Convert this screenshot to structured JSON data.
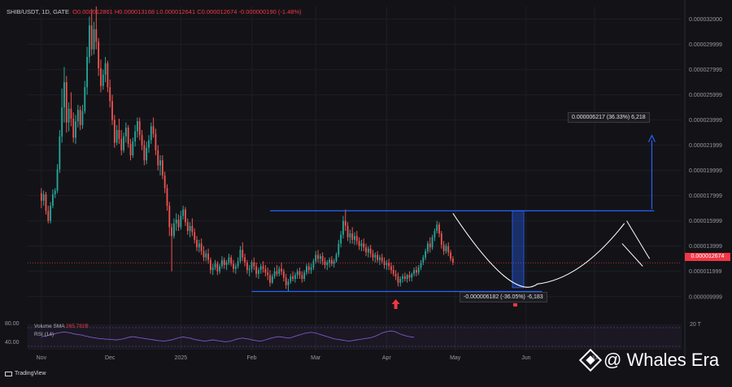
{
  "header": {
    "symbol": "SHIB/USDT, 1D, GATE",
    "ohlc": "O0.000012861 H0.000013168 L0.000012641 C0.000012674 -0.000000190 (-1.48%)"
  },
  "colors": {
    "background": "#131317",
    "up": "#26a69a",
    "down": "#ef5350",
    "box": "#2962ff",
    "curve": "#ffffff",
    "rsi": "#7e57c2"
  },
  "chart_data": {
    "type": "candlestick",
    "title": "",
    "y_ticks": [
      "0.000032000",
      "0.000029999",
      "0.000027999",
      "0.000025999",
      "0.000023999",
      "0.000021999",
      "0.000019999",
      "0.000017999",
      "0.000015999",
      "0.000013999",
      "0.000011999",
      "0.000009999"
    ],
    "ylim": [
      8.5e-06,
      3.3e-05
    ],
    "x_ticks": [
      "Nov",
      "Dec",
      "2025",
      "Feb",
      "Mar",
      "Apr",
      "May",
      "Jun",
      "Jul"
    ],
    "x_tick_days": [
      0,
      30,
      61,
      92,
      120,
      151,
      181,
      212,
      242
    ],
    "day_range": [
      -6,
      280
    ],
    "last_price_label": "0.000012674",
    "last_price": 1.2674e-05,
    "candles": [
      [
        1.82e-05,
        1.86e-05,
        1.7e-05,
        1.76e-05
      ],
      [
        1.76e-05,
        1.84e-05,
        1.72e-05,
        1.81e-05
      ],
      [
        1.81e-05,
        1.83e-05,
        1.65e-05,
        1.68e-05
      ],
      [
        1.68e-05,
        1.72e-05,
        1.58e-05,
        1.6e-05
      ],
      [
        1.6e-05,
        1.75e-05,
        1.58e-05,
        1.72e-05
      ],
      [
        1.72e-05,
        1.85e-05,
        1.7e-05,
        1.81e-05
      ],
      [
        1.81e-05,
        1.86e-05,
        1.78e-05,
        1.84e-05
      ],
      [
        1.84e-05,
        2.05e-05,
        1.82e-05,
        2.01e-05
      ],
      [
        2.01e-05,
        2.32e-05,
        1.98e-05,
        2.27e-05
      ],
      [
        2.27e-05,
        2.65e-05,
        2.22e-05,
        2.5e-05
      ],
      [
        2.5e-05,
        2.82e-05,
        2.38e-05,
        2.7e-05
      ],
      [
        2.7e-05,
        2.75e-05,
        2.3e-05,
        2.38e-05
      ],
      [
        2.38e-05,
        2.54e-05,
        2.31e-05,
        2.49e-05
      ],
      [
        2.49e-05,
        2.62e-05,
        2.35e-05,
        2.41e-05
      ],
      [
        2.41e-05,
        2.46e-05,
        2.22e-05,
        2.26e-05
      ],
      [
        2.26e-05,
        2.44e-05,
        2.21e-05,
        2.39e-05
      ],
      [
        2.39e-05,
        2.52e-05,
        2.34e-05,
        2.48e-05
      ],
      [
        2.48e-05,
        2.51e-05,
        2.32e-05,
        2.36e-05
      ],
      [
        2.36e-05,
        2.52e-05,
        2.33e-05,
        2.47e-05
      ],
      [
        2.47e-05,
        2.71e-05,
        2.45e-05,
        2.66e-05
      ],
      [
        2.66e-05,
        2.98e-05,
        2.6e-05,
        2.9e-05
      ],
      [
        2.9e-05,
        3.22e-05,
        2.85e-05,
        3.15e-05
      ],
      [
        3.15e-05,
        3.28e-05,
        2.91e-05,
        2.96e-05
      ],
      [
        2.96e-05,
        3.18e-05,
        2.92e-05,
        3.12e-05
      ],
      [
        3.12e-05,
        3.3e-05,
        2.96e-05,
        3.02e-05
      ],
      [
        3.02e-05,
        3.05e-05,
        2.75e-05,
        2.81e-05
      ],
      [
        2.81e-05,
        2.88e-05,
        2.62e-05,
        2.67e-05
      ],
      [
        2.67e-05,
        2.8e-05,
        2.64e-05,
        2.76e-05
      ],
      [
        2.76e-05,
        2.9e-05,
        2.7e-05,
        2.85e-05
      ],
      [
        2.85e-05,
        2.87e-05,
        2.62e-05,
        2.66e-05
      ],
      [
        2.66e-05,
        2.72e-05,
        2.5e-05,
        2.55e-05
      ],
      [
        2.55e-05,
        2.6e-05,
        2.36e-05,
        2.4e-05
      ],
      [
        2.4e-05,
        2.44e-05,
        2.18e-05,
        2.22e-05
      ],
      [
        2.22e-05,
        2.36e-05,
        2.2e-05,
        2.32e-05
      ],
      [
        2.32e-05,
        2.41e-05,
        2.21e-05,
        2.25e-05
      ],
      [
        2.25e-05,
        2.32e-05,
        2.12e-05,
        2.16e-05
      ],
      [
        2.16e-05,
        2.3e-05,
        2.14e-05,
        2.27e-05
      ],
      [
        2.27e-05,
        2.38e-05,
        2.22e-05,
        2.34e-05
      ],
      [
        2.34e-05,
        2.36e-05,
        2.18e-05,
        2.21e-05
      ],
      [
        2.21e-05,
        2.25e-05,
        2.08e-05,
        2.12e-05
      ],
      [
        2.12e-05,
        2.26e-05,
        2.1e-05,
        2.23e-05
      ],
      [
        2.23e-05,
        2.36e-05,
        2.19e-05,
        2.31e-05
      ],
      [
        2.31e-05,
        2.42e-05,
        2.26e-05,
        2.39e-05
      ],
      [
        2.39e-05,
        2.42e-05,
        2.24e-05,
        2.28e-05
      ],
      [
        2.28e-05,
        2.32e-05,
        2.16e-05,
        2.2e-05
      ],
      [
        2.2e-05,
        2.24e-05,
        2.04e-05,
        2.08e-05
      ],
      [
        2.08e-05,
        2.23e-05,
        2.05e-05,
        2.18e-05
      ],
      [
        2.18e-05,
        2.28e-05,
        2.14e-05,
        2.24e-05
      ],
      [
        2.24e-05,
        2.38e-05,
        2.21e-05,
        2.35e-05
      ],
      [
        2.35e-05,
        2.42e-05,
        2.26e-05,
        2.29e-05
      ],
      [
        2.29e-05,
        2.33e-05,
        2.12e-05,
        2.16e-05
      ],
      [
        2.16e-05,
        2.2e-05,
        2e-05,
        2.04e-05
      ],
      [
        2.04e-05,
        2.12e-05,
        1.96e-05,
        2.08e-05
      ],
      [
        2.08e-05,
        2.12e-05,
        1.93e-05,
        1.96e-05
      ],
      [
        1.96e-05,
        1.99e-05,
        1.82e-05,
        1.86e-05
      ],
      [
        1.86e-05,
        1.89e-05,
        1.68e-05,
        1.72e-05
      ],
      [
        1.72e-05,
        1.75e-05,
        1.48e-05,
        1.55e-05
      ],
      [
        1.55e-05,
        1.58e-05,
        1.2e-05,
        1.48e-05
      ],
      [
        1.48e-05,
        1.62e-05,
        1.46e-05,
        1.58e-05
      ],
      [
        1.58e-05,
        1.66e-05,
        1.52e-05,
        1.61e-05
      ],
      [
        1.61e-05,
        1.65e-05,
        1.52e-05,
        1.55e-05
      ],
      [
        1.55e-05,
        1.68e-05,
        1.53e-05,
        1.64e-05
      ],
      [
        1.64e-05,
        1.72e-05,
        1.61e-05,
        1.69e-05
      ],
      [
        1.69e-05,
        1.71e-05,
        1.56e-05,
        1.59e-05
      ],
      [
        1.59e-05,
        1.62e-05,
        1.49e-05,
        1.52e-05
      ],
      [
        1.52e-05,
        1.59e-05,
        1.47e-05,
        1.56e-05
      ],
      [
        1.56e-05,
        1.62e-05,
        1.48e-05,
        1.51e-05
      ],
      [
        1.51e-05,
        1.54e-05,
        1.42e-05,
        1.45e-05
      ],
      [
        1.45e-05,
        1.48e-05,
        1.36e-05,
        1.39e-05
      ],
      [
        1.39e-05,
        1.45e-05,
        1.35e-05,
        1.42e-05
      ],
      [
        1.42e-05,
        1.46e-05,
        1.33e-05,
        1.36e-05
      ],
      [
        1.36e-05,
        1.4e-05,
        1.28e-05,
        1.31e-05
      ],
      [
        1.31e-05,
        1.37e-05,
        1.28e-05,
        1.34e-05
      ],
      [
        1.34e-05,
        1.38e-05,
        1.26e-05,
        1.29e-05
      ],
      [
        1.29e-05,
        1.31e-05,
        1.18e-05,
        1.21e-05
      ],
      [
        1.21e-05,
        1.26e-05,
        1.17e-05,
        1.23e-05
      ],
      [
        1.23e-05,
        1.29e-05,
        1.21e-05,
        1.26e-05
      ],
      [
        1.26e-05,
        1.28e-05,
        1.17e-05,
        1.2e-05
      ],
      [
        1.2e-05,
        1.26e-05,
        1.18e-05,
        1.24e-05
      ],
      [
        1.24e-05,
        1.32e-05,
        1.22e-05,
        1.29e-05
      ],
      [
        1.29e-05,
        1.31e-05,
        1.22e-05,
        1.25e-05
      ],
      [
        1.25e-05,
        1.29e-05,
        1.21e-05,
        1.27e-05
      ],
      [
        1.27e-05,
        1.34e-05,
        1.25e-05,
        1.31e-05
      ],
      [
        1.31e-05,
        1.33e-05,
        1.24e-05,
        1.26e-05
      ],
      [
        1.26e-05,
        1.29e-05,
        1.19e-05,
        1.22e-05
      ],
      [
        1.22e-05,
        1.26e-05,
        1.18e-05,
        1.24e-05
      ],
      [
        1.24e-05,
        1.31e-05,
        1.22e-05,
        1.28e-05
      ],
      [
        1.28e-05,
        1.4e-05,
        1.26e-05,
        1.37e-05
      ],
      [
        1.37e-05,
        1.43e-05,
        1.28e-05,
        1.31e-05
      ],
      [
        1.31e-05,
        1.34e-05,
        1.24e-05,
        1.27e-05
      ],
      [
        1.27e-05,
        1.29e-05,
        1.18e-05,
        1.21e-05
      ],
      [
        1.21e-05,
        1.25e-05,
        1.16e-05,
        1.22e-05
      ],
      [
        1.22e-05,
        1.29e-05,
        1.19e-05,
        1.27e-05
      ],
      [
        1.27e-05,
        1.31e-05,
        1.21e-05,
        1.24e-05
      ],
      [
        1.24e-05,
        1.27e-05,
        1.15e-05,
        1.18e-05
      ],
      [
        1.18e-05,
        1.23e-05,
        1.14e-05,
        1.21e-05
      ],
      [
        1.21e-05,
        1.26e-05,
        1.18e-05,
        1.24e-05
      ],
      [
        1.24e-05,
        1.28e-05,
        1.19e-05,
        1.22e-05
      ],
      [
        1.22e-05,
        1.25e-05,
        1.16e-05,
        1.19e-05
      ],
      [
        1.19e-05,
        1.23e-05,
        1.13e-05,
        1.17e-05
      ],
      [
        1.17e-05,
        1.21e-05,
        1.08e-05,
        1.11e-05
      ],
      [
        1.11e-05,
        1.18e-05,
        1.1e-05,
        1.16e-05
      ],
      [
        1.16e-05,
        1.23e-05,
        1.14e-05,
        1.2e-05
      ],
      [
        1.2e-05,
        1.25e-05,
        1.16e-05,
        1.18e-05
      ],
      [
        1.18e-05,
        1.24e-05,
        1.16e-05,
        1.22e-05
      ],
      [
        1.22e-05,
        1.27e-05,
        1.17e-05,
        1.2e-05
      ],
      [
        1.2e-05,
        1.22e-05,
        1.12e-05,
        1.15e-05
      ],
      [
        1.15e-05,
        1.18e-05,
        1.06e-05,
        1.09e-05
      ],
      [
        1.09e-05,
        1.14e-05,
        1.04e-05,
        1.12e-05
      ],
      [
        1.12e-05,
        1.18e-05,
        1.1e-05,
        1.16e-05
      ],
      [
        1.16e-05,
        1.2e-05,
        1.12e-05,
        1.14e-05
      ],
      [
        1.14e-05,
        1.19e-05,
        1.11e-05,
        1.17e-05
      ],
      [
        1.17e-05,
        1.22e-05,
        1.14e-05,
        1.2e-05
      ],
      [
        1.2e-05,
        1.23e-05,
        1.14e-05,
        1.17e-05
      ],
      [
        1.17e-05,
        1.2e-05,
        1.11e-05,
        1.14e-05
      ],
      [
        1.14e-05,
        1.21e-05,
        1.12e-05,
        1.19e-05
      ],
      [
        1.19e-05,
        1.26e-05,
        1.17e-05,
        1.24e-05
      ],
      [
        1.24e-05,
        1.27e-05,
        1.18e-05,
        1.21e-05
      ],
      [
        1.21e-05,
        1.26e-05,
        1.18e-05,
        1.23e-05
      ],
      [
        1.23e-05,
        1.3e-05,
        1.21e-05,
        1.28e-05
      ],
      [
        1.28e-05,
        1.36e-05,
        1.26e-05,
        1.33e-05
      ],
      [
        1.33e-05,
        1.37e-05,
        1.27e-05,
        1.3e-05
      ],
      [
        1.3e-05,
        1.34e-05,
        1.26e-05,
        1.32e-05
      ],
      [
        1.32e-05,
        1.35e-05,
        1.25e-05,
        1.28e-05
      ],
      [
        1.28e-05,
        1.31e-05,
        1.22e-05,
        1.25e-05
      ],
      [
        1.25e-05,
        1.29e-05,
        1.21e-05,
        1.27e-05
      ],
      [
        1.27e-05,
        1.31e-05,
        1.23e-05,
        1.29e-05
      ],
      [
        1.29e-05,
        1.32e-05,
        1.24e-05,
        1.26e-05
      ],
      [
        1.26e-05,
        1.3e-05,
        1.23e-05,
        1.28e-05
      ],
      [
        1.28e-05,
        1.35e-05,
        1.27e-05,
        1.33e-05
      ],
      [
        1.33e-05,
        1.45e-05,
        1.31e-05,
        1.42e-05
      ],
      [
        1.42e-05,
        1.52e-05,
        1.39e-05,
        1.49e-05
      ],
      [
        1.49e-05,
        1.64e-05,
        1.46e-05,
        1.6e-05
      ],
      [
        1.6e-05,
        1.69e-05,
        1.52e-05,
        1.56e-05
      ],
      [
        1.56e-05,
        1.59e-05,
        1.44e-05,
        1.47e-05
      ],
      [
        1.47e-05,
        1.53e-05,
        1.42e-05,
        1.5e-05
      ],
      [
        1.5e-05,
        1.55e-05,
        1.42e-05,
        1.45e-05
      ],
      [
        1.45e-05,
        1.51e-05,
        1.41e-05,
        1.48e-05
      ],
      [
        1.48e-05,
        1.52e-05,
        1.41e-05,
        1.44e-05
      ],
      [
        1.44e-05,
        1.47e-05,
        1.37e-05,
        1.4e-05
      ],
      [
        1.4e-05,
        1.45e-05,
        1.36e-05,
        1.42e-05
      ],
      [
        1.42e-05,
        1.46e-05,
        1.36e-05,
        1.39e-05
      ],
      [
        1.39e-05,
        1.42e-05,
        1.32e-05,
        1.35e-05
      ],
      [
        1.35e-05,
        1.4e-05,
        1.31e-05,
        1.38e-05
      ],
      [
        1.38e-05,
        1.41e-05,
        1.31e-05,
        1.34e-05
      ],
      [
        1.34e-05,
        1.37e-05,
        1.28e-05,
        1.31e-05
      ],
      [
        1.31e-05,
        1.35e-05,
        1.27e-05,
        1.33e-05
      ],
      [
        1.33e-05,
        1.36e-05,
        1.27e-05,
        1.29e-05
      ],
      [
        1.29e-05,
        1.33e-05,
        1.25e-05,
        1.31e-05
      ],
      [
        1.31e-05,
        1.34e-05,
        1.26e-05,
        1.28e-05
      ],
      [
        1.28e-05,
        1.31e-05,
        1.22e-05,
        1.25e-05
      ],
      [
        1.25e-05,
        1.29e-05,
        1.21e-05,
        1.27e-05
      ],
      [
        1.27e-05,
        1.3e-05,
        1.21e-05,
        1.24e-05
      ],
      [
        1.24e-05,
        1.27e-05,
        1.18e-05,
        1.21e-05
      ],
      [
        1.21e-05,
        1.25e-05,
        1.16e-05,
        1.18e-05
      ],
      [
        1.18e-05,
        1.21e-05,
        1.13e-05,
        1.16e-05
      ],
      [
        1.16e-05,
        1.19e-05,
        1.08e-05,
        1.11e-05
      ],
      [
        1.11e-05,
        1.16e-05,
        1.08e-05,
        1.14e-05
      ],
      [
        1.14e-05,
        1.18e-05,
        1.11e-05,
        1.16e-05
      ],
      [
        1.16e-05,
        1.19e-05,
        1.12e-05,
        1.14e-05
      ],
      [
        1.14e-05,
        1.18e-05,
        1.11e-05,
        1.17e-05
      ],
      [
        1.17e-05,
        1.2e-05,
        1.12e-05,
        1.15e-05
      ],
      [
        1.15e-05,
        1.19e-05,
        1.12e-05,
        1.18e-05
      ],
      [
        1.18e-05,
        1.23e-05,
        1.16e-05,
        1.21e-05
      ],
      [
        1.21e-05,
        1.24e-05,
        1.16e-05,
        1.19e-05
      ],
      [
        1.19e-05,
        1.25e-05,
        1.17e-05,
        1.23e-05
      ],
      [
        1.23e-05,
        1.29e-05,
        1.21e-05,
        1.27e-05
      ],
      [
        1.27e-05,
        1.33e-05,
        1.25e-05,
        1.31e-05
      ],
      [
        1.31e-05,
        1.38e-05,
        1.29e-05,
        1.36e-05
      ],
      [
        1.36e-05,
        1.44e-05,
        1.34e-05,
        1.42e-05
      ],
      [
        1.42e-05,
        1.47e-05,
        1.35e-05,
        1.39e-05
      ],
      [
        1.39e-05,
        1.49e-05,
        1.37e-05,
        1.47e-05
      ],
      [
        1.47e-05,
        1.54e-05,
        1.44e-05,
        1.52e-05
      ],
      [
        1.52e-05,
        1.6e-05,
        1.5e-05,
        1.57e-05
      ],
      [
        1.57e-05,
        1.59e-05,
        1.47e-05,
        1.5e-05
      ],
      [
        1.5e-05,
        1.52e-05,
        1.38e-05,
        1.41e-05
      ],
      [
        1.41e-05,
        1.44e-05,
        1.33e-05,
        1.36e-05
      ],
      [
        1.36e-05,
        1.42e-05,
        1.34e-05,
        1.4e-05
      ],
      [
        1.4e-05,
        1.43e-05,
        1.32e-05,
        1.35e-05
      ],
      [
        1.35e-05,
        1.37e-05,
        1.28e-05,
        1.3e-05
      ],
      [
        1.3e-05,
        1.32e-05,
        1.25e-05,
        1.27e-05
      ]
    ],
    "annotations": {
      "range_top": 1.68e-05,
      "range_bottom": 1.04e-05,
      "range_day_start": 92,
      "range_day_end": 268,
      "target_price": 2.29e-05,
      "target_day": 267,
      "target_label": "0.000006217 (36.33%) 6,218",
      "drop_label": "-0.000006182 (-36.05%) -6,183",
      "drop_day_start": 206,
      "drop_day_end": 211,
      "arrow_day": 155
    },
    "volume_legend_label": "Volume SMA",
    "volume_legend_value": "265.782B",
    "rsi_label": "RSI (14)",
    "rsi_scale": [
      "80.00",
      "40.00"
    ],
    "rsi_values": [
      55,
      57,
      58,
      59,
      61,
      63,
      64,
      66,
      67,
      68,
      69,
      68,
      67,
      66,
      64,
      63,
      62,
      61,
      60,
      58,
      57,
      55,
      54,
      53,
      52,
      51,
      50,
      50,
      49,
      49,
      48,
      48,
      47,
      47,
      48,
      49,
      50,
      52,
      54,
      55,
      56,
      55,
      54,
      53,
      52,
      51,
      50,
      49,
      48,
      47,
      46,
      45,
      45,
      44,
      44,
      45,
      46,
      47,
      49,
      51,
      53,
      54,
      55,
      54,
      53,
      52,
      50,
      48,
      47,
      46,
      45,
      44,
      44,
      45,
      46,
      47,
      46,
      45,
      44,
      43,
      42,
      42,
      43,
      44,
      46,
      48,
      50,
      51,
      52,
      51,
      50,
      49,
      47,
      46,
      45,
      44,
      44,
      45,
      47,
      49,
      51,
      53,
      54,
      55,
      56,
      55,
      54,
      53,
      52,
      53,
      55,
      57,
      59,
      61,
      63,
      65,
      66,
      67,
      68,
      67,
      66,
      64,
      62,
      60,
      58,
      56,
      54,
      52,
      50,
      49,
      48,
      47,
      46,
      45,
      44,
      44,
      45,
      46,
      47,
      48,
      49,
      50,
      51,
      52,
      53,
      55,
      57,
      60,
      63,
      66,
      68,
      70,
      71,
      72,
      71,
      69,
      66,
      63,
      61,
      59,
      57,
      56,
      55,
      54
    ]
  },
  "watermark": "@ Whales Era",
  "footer_brand": "TradingView",
  "side_tag_rsi": "20 T"
}
